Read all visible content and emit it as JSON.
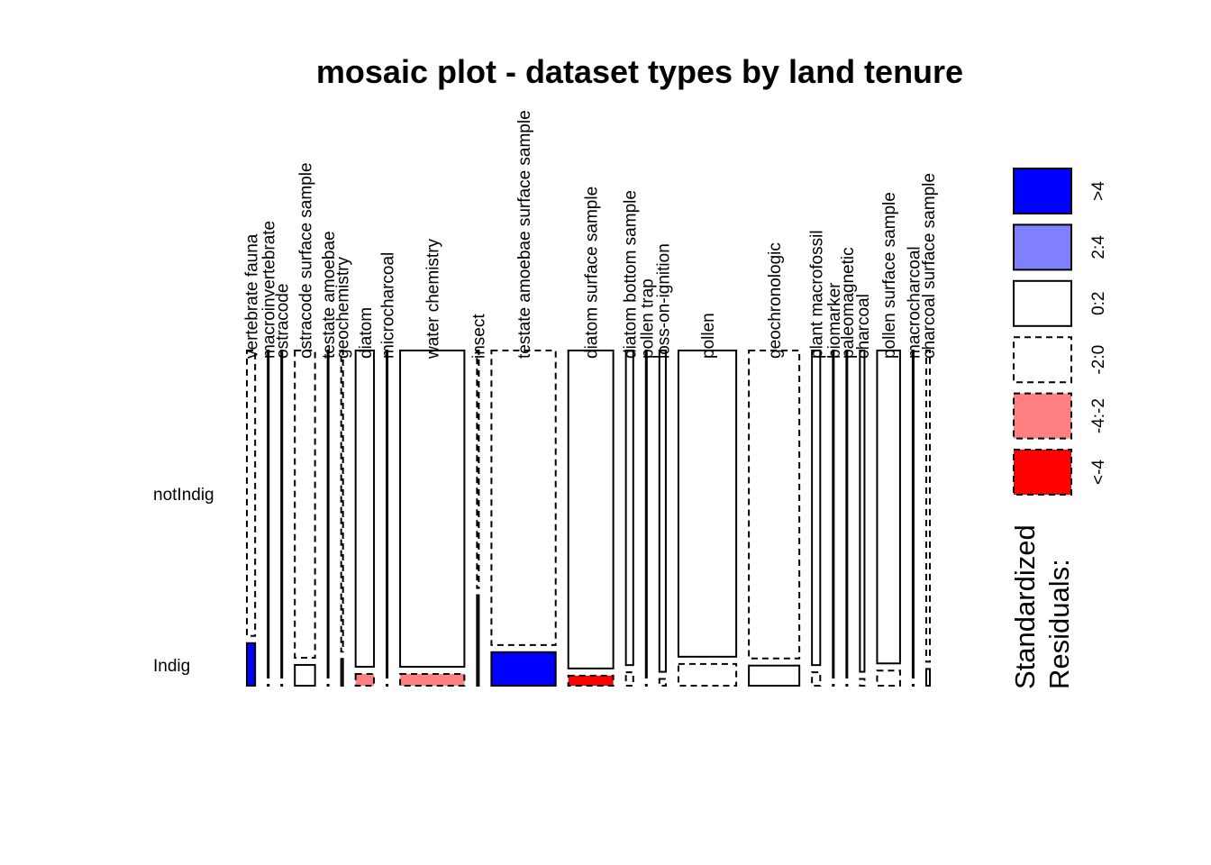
{
  "chart_data": {
    "type": "mosaic",
    "title": "mosaic plot - dataset types by land tenure",
    "rows": [
      "notIndig",
      "Indig"
    ],
    "columns": [
      {
        "name": "vertebrate fauna",
        "weight": 9,
        "indig_share": 0.127,
        "residual_notIndig": "-2:0",
        "residual_Indig": ">4"
      },
      {
        "name": "macroinvertebrate",
        "weight": 1,
        "indig_share": 0.0,
        "residual_notIndig": "0:2",
        "residual_Indig": "-2:0"
      },
      {
        "name": "ostracode",
        "weight": 1,
        "indig_share": 0.0,
        "residual_notIndig": "0:2",
        "residual_Indig": "-2:0"
      },
      {
        "name": "ostracode surface sample",
        "weight": 22,
        "indig_share": 0.062,
        "residual_notIndig": "-2:0",
        "residual_Indig": "0:2"
      },
      {
        "name": "testate amoebae",
        "weight": 1,
        "indig_share": 0.0,
        "residual_notIndig": "0:2",
        "residual_Indig": "-2:0"
      },
      {
        "name": "geochemistry",
        "weight": 2,
        "indig_share": 0.08,
        "residual_notIndig": "-2:0",
        "residual_Indig": "0:2"
      },
      {
        "name": "diatom",
        "weight": 20,
        "indig_share": 0.035,
        "residual_notIndig": "0:2",
        "residual_Indig": "-4:-2"
      },
      {
        "name": "microcharcoal",
        "weight": 1,
        "indig_share": 0.0,
        "residual_notIndig": "0:2",
        "residual_Indig": "-2:0"
      },
      {
        "name": "water chemistry",
        "weight": 70,
        "indig_share": 0.035,
        "residual_notIndig": "0:2",
        "residual_Indig": "-4:-2"
      },
      {
        "name": "insect",
        "weight": 2,
        "indig_share": 0.27,
        "residual_notIndig": "-2:0",
        "residual_Indig": "0:2"
      },
      {
        "name": "testate amoebae surface sample",
        "weight": 70,
        "indig_share": 0.1,
        "residual_notIndig": "-2:0",
        "residual_Indig": ">4"
      },
      {
        "name": "diatom surface sample",
        "weight": 49,
        "indig_share": 0.03,
        "residual_notIndig": "0:2",
        "residual_Indig": "<-4"
      },
      {
        "name": "diatom bottom sample",
        "weight": 8,
        "indig_share": 0.04,
        "residual_notIndig": "0:2",
        "residual_Indig": "-2:0"
      },
      {
        "name": "pollen trap",
        "weight": 1,
        "indig_share": 0.0,
        "residual_notIndig": "0:2",
        "residual_Indig": "-2:0"
      },
      {
        "name": "loss-on-ignition",
        "weight": 7,
        "indig_share": 0.02,
        "residual_notIndig": "0:2",
        "residual_Indig": "-2:0"
      },
      {
        "name": "pollen",
        "weight": 63,
        "indig_share": 0.065,
        "residual_notIndig": "0:2",
        "residual_Indig": "-2:0"
      },
      {
        "name": "geochronologic",
        "weight": 55,
        "indig_share": 0.06,
        "residual_notIndig": "-2:0",
        "residual_Indig": "0:2"
      },
      {
        "name": "plant macrofossil",
        "weight": 9,
        "indig_share": 0.04,
        "residual_notIndig": "0:2",
        "residual_Indig": "-2:0"
      },
      {
        "name": "biomarker",
        "weight": 1,
        "indig_share": 0.0,
        "residual_notIndig": "0:2",
        "residual_Indig": "-2:0"
      },
      {
        "name": "paleomagnetic",
        "weight": 1,
        "indig_share": 0.0,
        "residual_notIndig": "0:2",
        "residual_Indig": "-2:0"
      },
      {
        "name": "charcoal",
        "weight": 5,
        "indig_share": 0.02,
        "residual_notIndig": "0:2",
        "residual_Indig": "-2:0"
      },
      {
        "name": "pollen surface sample",
        "weight": 25,
        "indig_share": 0.045,
        "residual_notIndig": "0:2",
        "residual_Indig": "-2:0"
      },
      {
        "name": "macrocharcoal",
        "weight": 1,
        "indig_share": 0.0,
        "residual_notIndig": "0:2",
        "residual_Indig": "-2:0"
      },
      {
        "name": "charcoal surface sample",
        "weight": 4,
        "indig_share": 0.05,
        "residual_notIndig": "-2:0",
        "residual_Indig": "0:2"
      }
    ],
    "legend": {
      "title_line1": "Standardized",
      "title_line2": "Residuals:",
      "entries": [
        {
          "label": ">4",
          "color": "#0000ff",
          "dashed": false
        },
        {
          "label": "2:4",
          "color": "#8080ff",
          "dashed": false
        },
        {
          "label": "0:2",
          "color": "#ffffff",
          "dashed": false
        },
        {
          "label": "-2:0",
          "color": "#ffffff",
          "dashed": true
        },
        {
          "label": "-4:-2",
          "color": "#ff8080",
          "dashed": true
        },
        {
          "label": "<-4",
          "color": "#ff0000",
          "dashed": true
        }
      ]
    }
  }
}
